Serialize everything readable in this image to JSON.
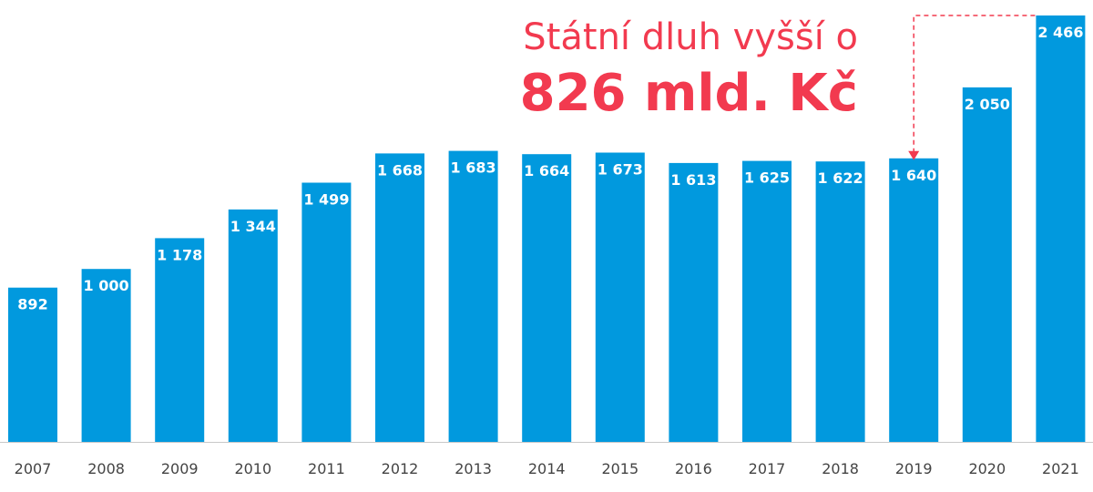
{
  "chart_data": {
    "type": "bar",
    "categories": [
      "2007",
      "2008",
      "2009",
      "2010",
      "2011",
      "2012",
      "2013",
      "2014",
      "2015",
      "2016",
      "2017",
      "2018",
      "2019",
      "2020",
      "2021"
    ],
    "values": [
      892,
      1000,
      1178,
      1344,
      1499,
      1668,
      1683,
      1664,
      1673,
      1613,
      1625,
      1622,
      1640,
      2050,
      2466
    ],
    "labels": [
      "892",
      "1 000",
      "1 178",
      "1 344",
      "1 499",
      "1 668",
      "1 683",
      "1 664",
      "1 673",
      "1 613",
      "1 625",
      "1 622",
      "1 640",
      "2 050",
      "2 466"
    ],
    "title": "",
    "xlabel": "",
    "ylabel": "",
    "ylim": [
      0,
      2466
    ],
    "grid": false,
    "bar_color": "#0199de",
    "annotation": {
      "line1": "Státní dluh vyšší o",
      "line2": "826 mld. Kč",
      "from_category": "2019",
      "to_category": "2021",
      "color": "#f23a4f"
    }
  }
}
